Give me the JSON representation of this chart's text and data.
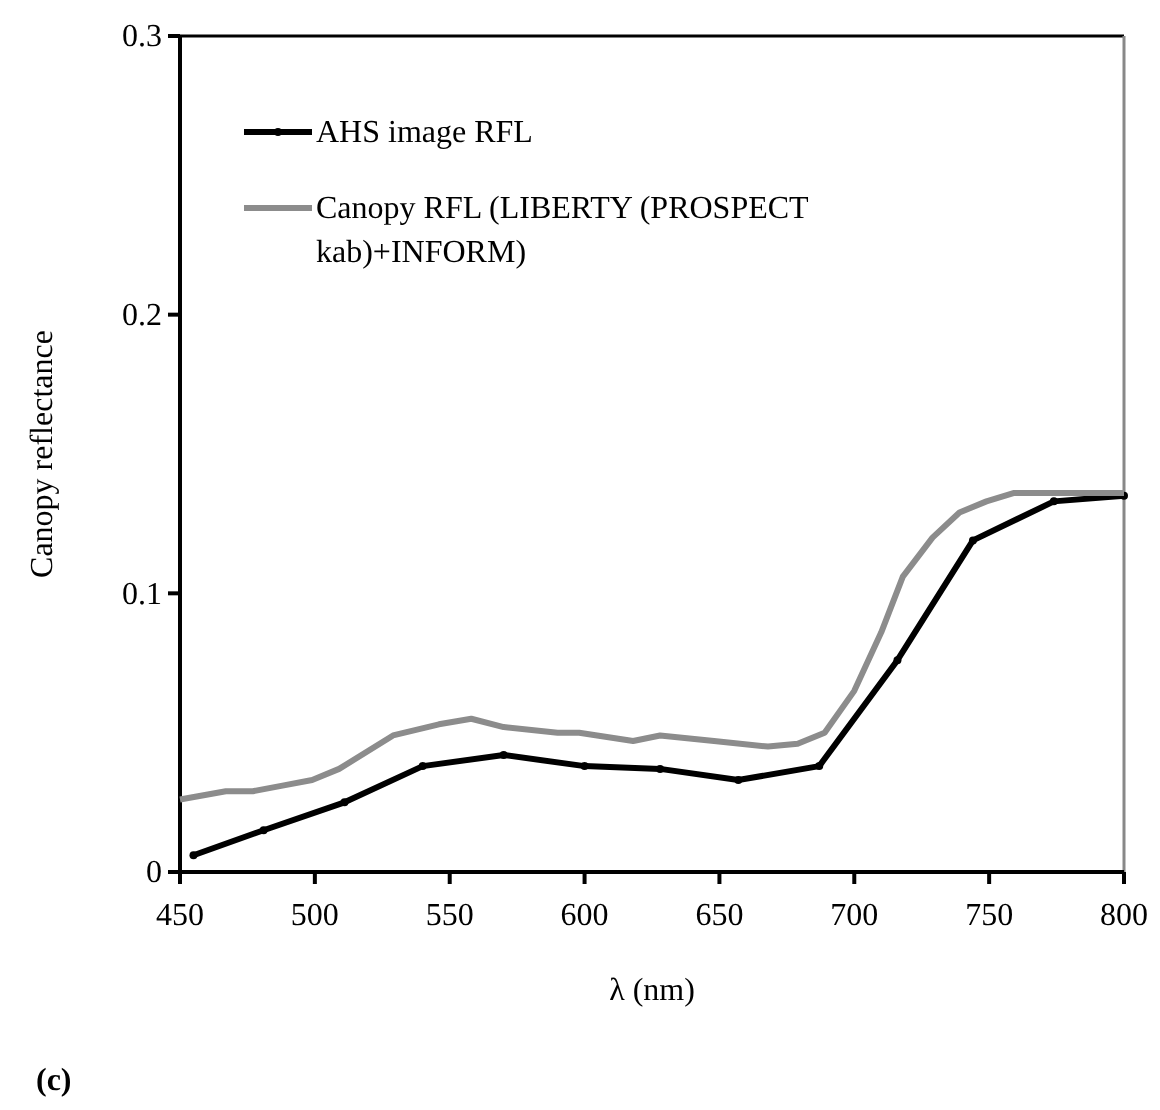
{
  "chart_data": {
    "type": "line",
    "xlabel": "λ (nm)",
    "ylabel": "Canopy reflectance",
    "xlim": [
      450,
      800
    ],
    "xticks": [
      450,
      500,
      550,
      600,
      650,
      700,
      750,
      800
    ],
    "ylim": [
      0,
      0.3
    ],
    "yticks": [
      0,
      0.1,
      0.2,
      0.3
    ],
    "grid": false,
    "legend": "top left",
    "annotations": [
      "(c)"
    ],
    "series": [
      {
        "name": "AHS image RFL",
        "color": "#000000",
        "marker": "circle",
        "x": [
          455,
          481,
          511,
          540,
          570,
          600,
          628,
          657,
          687,
          716,
          744,
          774,
          800
        ],
        "values": [
          0.006,
          0.015,
          0.025,
          0.038,
          0.042,
          0.038,
          0.037,
          0.033,
          0.038,
          0.076,
          0.119,
          0.133,
          0.135
        ]
      },
      {
        "name": "Canopy RFL (LIBERTY (PROSPECT kab)+INFORM)",
        "color": "#8c8c8c",
        "marker": "none",
        "x": [
          450,
          467,
          477,
          488,
          499,
          509,
          529,
          546,
          558,
          570,
          590,
          598,
          618,
          628,
          648,
          668,
          679,
          689,
          700,
          710,
          718,
          729,
          739,
          749,
          759,
          800
        ],
        "values": [
          0.026,
          0.029,
          0.029,
          0.031,
          0.033,
          0.037,
          0.049,
          0.053,
          0.055,
          0.052,
          0.05,
          0.05,
          0.047,
          0.049,
          0.047,
          0.045,
          0.046,
          0.05,
          0.065,
          0.086,
          0.106,
          0.12,
          0.129,
          0.133,
          0.136,
          0.136
        ]
      }
    ]
  }
}
